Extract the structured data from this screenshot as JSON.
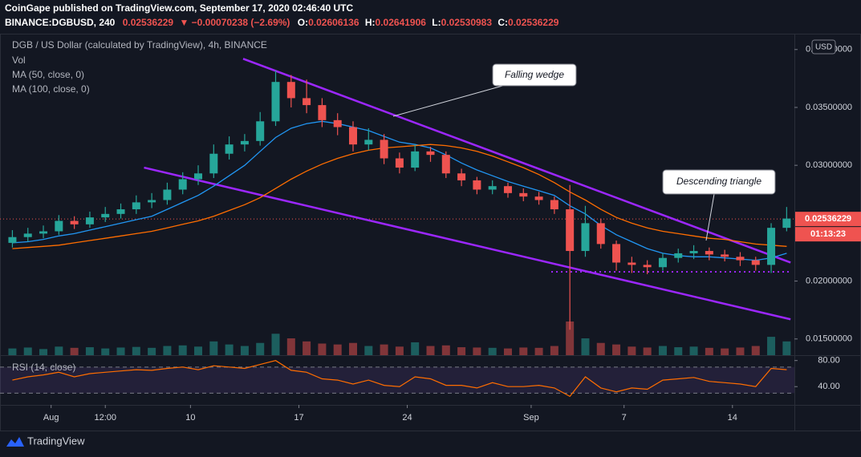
{
  "header": {
    "line1": "CoinGape published on TradingView.com, September 17, 2020 02:46:40 UTC",
    "symbol": "BINANCE:DGBUSD, 240",
    "price": "0.02536229",
    "change": "▼ −0.00070238 (−2.69%)",
    "ohlc": [
      {
        "key": "O:",
        "value": "0.02606136"
      },
      {
        "key": "H:",
        "value": "0.02641906"
      },
      {
        "key": "L:",
        "value": "0.02530983"
      },
      {
        "key": "C:",
        "value": "0.02536229"
      }
    ]
  },
  "footer": {
    "brand": "TradingView"
  },
  "chart_data": {
    "type": "candlestick",
    "title": "DGB / US Dollar (calculated by TradingView), 4h, BINANCE",
    "up_color": "#26a69a",
    "down_color": "#ef5350",
    "x": [
      -2.5,
      -1.5,
      -0.5,
      0.5,
      1.5,
      2.5,
      3.5,
      4.5,
      5.5,
      6.5,
      7.5,
      8.5,
      9.5,
      10.5,
      11.5,
      12.5,
      13.5,
      14.5,
      15.5,
      16.5,
      17.5,
      18.5,
      19.5,
      20.5,
      21.5,
      22.5,
      23.5,
      24.5,
      25.5,
      26.5,
      27.5,
      28.5,
      29.5,
      30.5,
      31.5,
      32.5,
      33.5,
      34.5,
      35.5,
      36.5,
      37.5,
      38.5,
      39.5,
      40.5,
      41.5,
      42.5,
      43.5,
      44.5,
      45.5,
      46.5,
      47.5
    ],
    "open": [
      0.0233,
      0.0238,
      0.0241,
      0.0243,
      0.0252,
      0.0249,
      0.0255,
      0.0258,
      0.0262,
      0.0268,
      0.027,
      0.0279,
      0.0288,
      0.0293,
      0.031,
      0.0318,
      0.0321,
      0.0338,
      0.0372,
      0.0358,
      0.0352,
      0.0339,
      0.0333,
      0.0318,
      0.0322,
      0.0306,
      0.0298,
      0.0312,
      0.0309,
      0.0293,
      0.0287,
      0.0279,
      0.0282,
      0.0276,
      0.0273,
      0.027,
      0.0262,
      0.0226,
      0.025,
      0.0232,
      0.0216,
      0.0214,
      0.0212,
      0.022,
      0.0224,
      0.0226,
      0.0223,
      0.0221,
      0.0218,
      0.0214,
      0.0246
    ],
    "high": [
      0.0244,
      0.0246,
      0.0248,
      0.0257,
      0.0256,
      0.026,
      0.0264,
      0.0267,
      0.0274,
      0.0276,
      0.0285,
      0.0294,
      0.03,
      0.0318,
      0.0325,
      0.0327,
      0.0346,
      0.0382,
      0.0378,
      0.0374,
      0.0358,
      0.0345,
      0.0338,
      0.0332,
      0.0327,
      0.0311,
      0.0318,
      0.0316,
      0.0312,
      0.0297,
      0.029,
      0.0287,
      0.0285,
      0.028,
      0.0277,
      0.0273,
      0.0283,
      0.0265,
      0.0254,
      0.0235,
      0.0221,
      0.0218,
      0.0224,
      0.0228,
      0.0231,
      0.0229,
      0.0227,
      0.0225,
      0.0221,
      0.025,
      0.0264
    ],
    "low": [
      0.0229,
      0.0234,
      0.0237,
      0.024,
      0.0245,
      0.0246,
      0.0251,
      0.0254,
      0.0258,
      0.0263,
      0.0266,
      0.0275,
      0.0283,
      0.0289,
      0.0305,
      0.0312,
      0.0317,
      0.0334,
      0.035,
      0.0345,
      0.0333,
      0.0326,
      0.0312,
      0.0313,
      0.0301,
      0.0293,
      0.0295,
      0.0303,
      0.0289,
      0.0282,
      0.0275,
      0.0275,
      0.0272,
      0.0269,
      0.0266,
      0.0258,
      0.0158,
      0.0221,
      0.0228,
      0.0209,
      0.0207,
      0.0206,
      0.0209,
      0.0216,
      0.0219,
      0.0218,
      0.0217,
      0.0213,
      0.0209,
      0.0207,
      0.0243
    ],
    "close": [
      0.0238,
      0.0241,
      0.0243,
      0.0252,
      0.0249,
      0.0255,
      0.0258,
      0.0262,
      0.0268,
      0.027,
      0.0279,
      0.0288,
      0.0293,
      0.031,
      0.0318,
      0.0321,
      0.0338,
      0.0372,
      0.0358,
      0.0352,
      0.0339,
      0.0333,
      0.0318,
      0.0322,
      0.0306,
      0.0298,
      0.0312,
      0.0309,
      0.0293,
      0.0287,
      0.0279,
      0.0282,
      0.0276,
      0.0273,
      0.027,
      0.0262,
      0.0226,
      0.025,
      0.0232,
      0.0216,
      0.0214,
      0.0212,
      0.022,
      0.0224,
      0.0226,
      0.0223,
      0.0221,
      0.0218,
      0.0214,
      0.0246,
      0.0254
    ],
    "volume": {
      "name": "Vol",
      "values": [
        22,
        25,
        20,
        28,
        24,
        26,
        22,
        25,
        27,
        24,
        30,
        32,
        28,
        45,
        35,
        30,
        40,
        70,
        55,
        45,
        38,
        35,
        40,
        30,
        35,
        28,
        42,
        30,
        32,
        26,
        25,
        24,
        22,
        25,
        24,
        30,
        110,
        55,
        40,
        35,
        28,
        25,
        30,
        26,
        28,
        24,
        22,
        25,
        30,
        60,
        45
      ]
    },
    "series": [
      {
        "name": "MA (50, close, 0)",
        "color": "#2196f3",
        "values": [
          0.0233,
          0.0234,
          0.0236,
          0.0239,
          0.0241,
          0.0244,
          0.0247,
          0.025,
          0.0253,
          0.0256,
          0.0262,
          0.0268,
          0.0274,
          0.0282,
          0.0291,
          0.03,
          0.0312,
          0.0324,
          0.0332,
          0.0336,
          0.0338,
          0.0336,
          0.0333,
          0.033,
          0.0325,
          0.032,
          0.0318,
          0.0315,
          0.0309,
          0.0302,
          0.0296,
          0.0291,
          0.0286,
          0.0282,
          0.0278,
          0.0274,
          0.0265,
          0.0258,
          0.0248,
          0.024,
          0.0234,
          0.0228,
          0.0224,
          0.0222,
          0.0221,
          0.0221,
          0.022,
          0.0219,
          0.0218,
          0.022,
          0.0224
        ]
      },
      {
        "name": "MA (100, close, 0)",
        "color": "#ff6d00",
        "values": [
          0.0228,
          0.0229,
          0.023,
          0.0231,
          0.0233,
          0.0235,
          0.0237,
          0.0239,
          0.0241,
          0.0243,
          0.0246,
          0.0249,
          0.0252,
          0.0256,
          0.0261,
          0.0266,
          0.0272,
          0.028,
          0.0288,
          0.0295,
          0.0301,
          0.0306,
          0.031,
          0.0313,
          0.0315,
          0.0316,
          0.0317,
          0.0318,
          0.0317,
          0.0315,
          0.0312,
          0.0308,
          0.0303,
          0.0298,
          0.0292,
          0.0285,
          0.0277,
          0.027,
          0.0262,
          0.0255,
          0.025,
          0.0246,
          0.0243,
          0.0241,
          0.0239,
          0.0237,
          0.0236,
          0.0234,
          0.0232,
          0.0231,
          0.023
        ]
      }
    ],
    "xlim": [
      -3.3,
      48
    ],
    "xticks": [
      {
        "value": 0,
        "label": "Aug"
      },
      {
        "value": 3.5,
        "label": "12:00"
      },
      {
        "value": 9,
        "label": "10"
      },
      {
        "value": 16,
        "label": "17"
      },
      {
        "value": 23,
        "label": "24"
      },
      {
        "value": 31,
        "label": "Sep"
      },
      {
        "value": 37,
        "label": "7"
      },
      {
        "value": 44,
        "label": "14"
      }
    ],
    "ylim": [
      0.0136,
      0.0413
    ],
    "yticks": [
      {
        "value": 0.04,
        "label": "0.04000000"
      },
      {
        "value": 0.035,
        "label": "0.03500000"
      },
      {
        "value": 0.03,
        "label": "0.03000000"
      },
      {
        "value": 0.02,
        "label": "0.02000000"
      },
      {
        "value": 0.015,
        "label": "0.01500000"
      }
    ],
    "last_price": 0.02536229,
    "countdown": "01:13:23",
    "currency": "USD",
    "trendlines": [
      {
        "color": "#9c27ff",
        "x": [
          12.4,
          47.75
        ],
        "y": [
          0.0392,
          0.0216
        ]
      },
      {
        "color": "#9c27ff",
        "x": [
          6.0,
          47.75
        ],
        "y": [
          0.0298,
          0.0167
        ]
      }
    ],
    "support": {
      "color": "#9c27ff",
      "x": [
        32.3,
        47.75
      ],
      "y": 0.0208
    },
    "annotations": [
      "Falling wedge",
      "Descending triangle"
    ],
    "rsi": {
      "name": "RSI (14, close)",
      "color": "#ff6d00",
      "values": [
        50,
        55,
        58,
        62,
        55,
        60,
        62,
        64,
        66,
        65,
        68,
        70,
        66,
        72,
        70,
        68,
        74,
        80,
        65,
        62,
        52,
        50,
        44,
        50,
        42,
        40,
        55,
        52,
        42,
        42,
        38,
        46,
        40,
        40,
        42,
        38,
        25,
        55,
        38,
        32,
        38,
        36,
        50,
        52,
        54,
        48,
        46,
        44,
        40,
        68,
        66
      ],
      "ylim": [
        12,
        87
      ],
      "yticks": [
        {
          "value": 80,
          "label": "80.00"
        },
        {
          "value": 40,
          "label": "40.00"
        }
      ],
      "bands": [
        30,
        70
      ]
    }
  }
}
